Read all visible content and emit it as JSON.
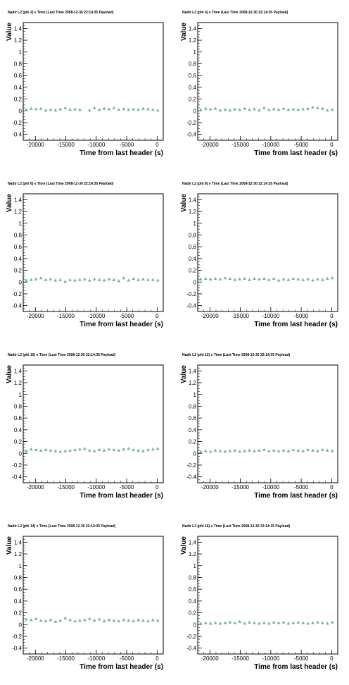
{
  "marker_color": "#6fb59c",
  "chart_data": [
    {
      "type": "scatter",
      "title": "Nadir L2 (phi 2) v Time (Last Time 2008-12-30 22:14:35 Payload)",
      "xlabel": "Time from last header (s)",
      "ylabel": "Value",
      "xlim": [
        -22000,
        1000
      ],
      "ylim": [
        -0.5,
        1.5
      ],
      "xticks": [
        -20000,
        -15000,
        -10000,
        -5000,
        0
      ],
      "xtick_labels": [
        "-20000",
        "-15000",
        "-10000",
        "-5000",
        "0"
      ],
      "yticks": [
        -0.4,
        -0.2,
        0,
        0.2,
        0.4,
        0.6,
        0.8,
        1,
        1.2,
        1.4
      ],
      "ytick_labels": [
        "-0.4",
        "-0.2",
        "0",
        "0.2",
        "0.4",
        "0.6",
        "0.8",
        "1",
        "1.2",
        "1.4"
      ],
      "grid": false,
      "x": [
        -21500,
        -20700,
        -19900,
        -19100,
        -18300,
        -17500,
        -16700,
        -15900,
        -15100,
        -14300,
        -13500,
        -12700,
        -11100,
        -10300,
        -9500,
        -8700,
        -7900,
        -7100,
        -6300,
        -5500,
        -4700,
        -3900,
        -3100,
        -2300,
        -1500,
        -700,
        100
      ],
      "y": [
        0.02,
        0.04,
        0.03,
        0.04,
        0.01,
        0.02,
        0.01,
        0.03,
        0.05,
        0.02,
        0.03,
        0.02,
        0.01,
        0.05,
        0.02,
        0.04,
        0.03,
        0.05,
        0.02,
        0.03,
        0.02,
        0.03,
        0.02,
        0.04,
        0.03,
        0.02,
        0.01
      ]
    },
    {
      "type": "scatter",
      "title": "Nadir L2 (phi 4) v Time (Last Time 2008-12-30 22:14:35 Payload)",
      "xlabel": "Time from last header (s)",
      "ylabel": "Value",
      "xlim": [
        -22000,
        1000
      ],
      "ylim": [
        -0.5,
        1.5
      ],
      "xticks": [
        -20000,
        -15000,
        -10000,
        -5000,
        0
      ],
      "xtick_labels": [
        "-20000",
        "-15000",
        "-10000",
        "-5000",
        "0"
      ],
      "yticks": [
        -0.4,
        -0.2,
        0,
        0.2,
        0.4,
        0.6,
        0.8,
        1,
        1.2,
        1.4
      ],
      "ytick_labels": [
        "-0.4",
        "-0.2",
        "0",
        "0.2",
        "0.4",
        "0.6",
        "0.8",
        "1",
        "1.2",
        "1.4"
      ],
      "grid": false,
      "x": [
        -21500,
        -20700,
        -19900,
        -19100,
        -18300,
        -17500,
        -16700,
        -15900,
        -15100,
        -14300,
        -13500,
        -12700,
        -11900,
        -11100,
        -10300,
        -9500,
        -8700,
        -7900,
        -7100,
        -6300,
        -5500,
        -4700,
        -3900,
        -3100,
        -2300,
        -1500,
        -700,
        100
      ],
      "y": [
        0.02,
        0.04,
        0.03,
        0.04,
        0.01,
        0.02,
        0.01,
        0.03,
        0.02,
        0.04,
        0.02,
        0.03,
        0.01,
        0.05,
        0.02,
        0.03,
        0.02,
        0.04,
        0.02,
        0.03,
        0.02,
        0.03,
        0.04,
        0.06,
        0.05,
        0.04,
        0.01,
        0.02
      ]
    },
    {
      "type": "scatter",
      "title": "Nadir L2 (phi 6) v Time (Last Time 2008-12-30 22:14:35 Payload)",
      "xlabel": "Time from last header (s)",
      "ylabel": "Value",
      "xlim": [
        -22000,
        1000
      ],
      "ylim": [
        -0.5,
        1.5
      ],
      "xticks": [
        -20000,
        -15000,
        -10000,
        -5000,
        0
      ],
      "xtick_labels": [
        "-20000",
        "-15000",
        "-10000",
        "-5000",
        "0"
      ],
      "yticks": [
        -0.4,
        -0.2,
        0,
        0.2,
        0.4,
        0.6,
        0.8,
        1,
        1.2,
        1.4
      ],
      "ytick_labels": [
        "-0.4",
        "-0.2",
        "0",
        "0.2",
        "0.4",
        "0.6",
        "0.8",
        "1",
        "1.2",
        "1.4"
      ],
      "grid": false,
      "x": [
        -21500,
        -20700,
        -19900,
        -19100,
        -18300,
        -17500,
        -16700,
        -15900,
        -15100,
        -14300,
        -13500,
        -12700,
        -11900,
        -11100,
        -10300,
        -9500,
        -8700,
        -7900,
        -7100,
        -6300,
        -5500,
        -4700,
        -3900,
        -3100,
        -2300,
        -1500,
        -700,
        100
      ],
      "y": [
        0.03,
        0.04,
        0.05,
        0.07,
        0.04,
        0.05,
        0.03,
        0.04,
        0.01,
        0.04,
        0.03,
        0.04,
        0.05,
        0.03,
        0.05,
        0.04,
        0.03,
        0.05,
        0.04,
        0.02,
        0.07,
        0.03,
        0.06,
        0.04,
        0.05,
        0.04,
        0.04,
        0.03
      ]
    },
    {
      "type": "scatter",
      "title": "Nadir L2 (phi 8) v Time (Last Time 2008-12-30 22:14:35 Payload)",
      "xlabel": "Time from last header (s)",
      "ylabel": "Value",
      "xlim": [
        -22000,
        1000
      ],
      "ylim": [
        -0.5,
        1.5
      ],
      "xticks": [
        -20000,
        -15000,
        -10000,
        -5000,
        0
      ],
      "xtick_labels": [
        "-20000",
        "-15000",
        "-10000",
        "-5000",
        "0"
      ],
      "yticks": [
        -0.4,
        -0.2,
        0,
        0.2,
        0.4,
        0.6,
        0.8,
        1,
        1.2,
        1.4
      ],
      "ytick_labels": [
        "-0.4",
        "-0.2",
        "0",
        "0.2",
        "0.4",
        "0.6",
        "0.8",
        "1",
        "1.2",
        "1.4"
      ],
      "grid": false,
      "x": [
        -21500,
        -20700,
        -19900,
        -19100,
        -18300,
        -17500,
        -16700,
        -15900,
        -15100,
        -14300,
        -13500,
        -12700,
        -11900,
        -11100,
        -10300,
        -9500,
        -8700,
        -7900,
        -7100,
        -6300,
        -5500,
        -4700,
        -3900,
        -3100,
        -2300,
        -1500,
        -700,
        100
      ],
      "y": [
        0.05,
        0.06,
        0.05,
        0.06,
        0.05,
        0.07,
        0.06,
        0.04,
        0.05,
        0.06,
        0.04,
        0.06,
        0.05,
        0.06,
        0.04,
        0.06,
        0.03,
        0.05,
        0.04,
        0.06,
        0.05,
        0.04,
        0.05,
        0.03,
        0.05,
        0.04,
        0.06,
        0.07
      ]
    },
    {
      "type": "scatter",
      "title": "Nadir L2 (phi 10) v Time (Last Time 2008-12-30 22:14:35 Payload)",
      "xlabel": "Time from last header (s)",
      "ylabel": "Value",
      "xlim": [
        -22000,
        1000
      ],
      "ylim": [
        -0.5,
        1.5
      ],
      "xticks": [
        -20000,
        -15000,
        -10000,
        -5000,
        0
      ],
      "xtick_labels": [
        "-20000",
        "-15000",
        "-10000",
        "-5000",
        "0"
      ],
      "yticks": [
        -0.4,
        -0.2,
        0,
        0.2,
        0.4,
        0.6,
        0.8,
        1,
        1.2,
        1.4
      ],
      "ytick_labels": [
        "-0.4",
        "-0.2",
        "0",
        "0.2",
        "0.4",
        "0.6",
        "0.8",
        "1",
        "1.2",
        "1.4"
      ],
      "grid": false,
      "x": [
        -21500,
        -20700,
        -19900,
        -19100,
        -18300,
        -17500,
        -16700,
        -15900,
        -15100,
        -14300,
        -13500,
        -12700,
        -11900,
        -11100,
        -10300,
        -9500,
        -8700,
        -7900,
        -7100,
        -6300,
        -5500,
        -4700,
        -3900,
        -3100,
        -2300,
        -1500,
        -700,
        100
      ],
      "y": [
        0.04,
        0.07,
        0.06,
        0.05,
        0.06,
        0.05,
        0.04,
        0.03,
        0.04,
        0.05,
        0.06,
        0.07,
        0.08,
        0.05,
        0.04,
        0.06,
        0.05,
        0.07,
        0.06,
        0.05,
        0.07,
        0.08,
        0.06,
        0.05,
        0.04,
        0.06,
        0.07,
        0.08
      ]
    },
    {
      "type": "scatter",
      "title": "Nadir L2 (phi 12) v Time (Last Time 2008-12-30 22:14:35 Payload)",
      "xlabel": "Time from last header (s)",
      "ylabel": "Value",
      "xlim": [
        -22000,
        1000
      ],
      "ylim": [
        -0.5,
        1.5
      ],
      "xticks": [
        -20000,
        -15000,
        -10000,
        -5000,
        0
      ],
      "xtick_labels": [
        "-20000",
        "-15000",
        "-10000",
        "-5000",
        "0"
      ],
      "yticks": [
        -0.4,
        -0.2,
        0,
        0.2,
        0.4,
        0.6,
        0.8,
        1,
        1.2,
        1.4
      ],
      "ytick_labels": [
        "-0.4",
        "-0.2",
        "0",
        "0.2",
        "0.4",
        "0.6",
        "0.8",
        "1",
        "1.2",
        "1.4"
      ],
      "grid": false,
      "x": [
        -21500,
        -20700,
        -19900,
        -19100,
        -18300,
        -17500,
        -16700,
        -15900,
        -15100,
        -14300,
        -13500,
        -12700,
        -11900,
        -11100,
        -10300,
        -9500,
        -8700,
        -7900,
        -7100,
        -6300,
        -5500,
        -4700,
        -3900,
        -3100,
        -2300,
        -1500,
        -700,
        100
      ],
      "y": [
        0.03,
        0.04,
        0.03,
        0.05,
        0.04,
        0.03,
        0.04,
        0.05,
        0.03,
        0.04,
        0.05,
        0.04,
        0.05,
        0.06,
        0.04,
        0.05,
        0.04,
        0.05,
        0.04,
        0.06,
        0.05,
        0.04,
        0.06,
        0.05,
        0.04,
        0.06,
        0.05,
        0.04
      ]
    },
    {
      "type": "scatter",
      "title": "Nadir L2 (phi 14) v Time (Last Time 2008-12-30 22:14:35 Payload)",
      "xlabel": "Time from last header (s)",
      "ylabel": "Value",
      "xlim": [
        -22000,
        1000
      ],
      "ylim": [
        -0.5,
        1.5
      ],
      "xticks": [
        -20000,
        -15000,
        -10000,
        -5000,
        0
      ],
      "xtick_labels": [
        "-20000",
        "-15000",
        "-10000",
        "-5000",
        "0"
      ],
      "yticks": [
        -0.4,
        -0.2,
        0,
        0.2,
        0.4,
        0.6,
        0.8,
        1,
        1.2,
        1.4
      ],
      "ytick_labels": [
        "-0.4",
        "-0.2",
        "0",
        "0.2",
        "0.4",
        "0.6",
        "0.8",
        "1",
        "1.2",
        "1.4"
      ],
      "grid": false,
      "x": [
        -21500,
        -20700,
        -19900,
        -19100,
        -18300,
        -17500,
        -16700,
        -15900,
        -15100,
        -14300,
        -13500,
        -12700,
        -11900,
        -11100,
        -10300,
        -9500,
        -8700,
        -7900,
        -7100,
        -6300,
        -5500,
        -4700,
        -3900,
        -3100,
        -2300,
        -1500,
        -700,
        100
      ],
      "y": [
        0.09,
        0.08,
        0.1,
        0.07,
        0.06,
        0.08,
        0.05,
        0.07,
        0.11,
        0.08,
        0.06,
        0.07,
        0.08,
        0.1,
        0.07,
        0.09,
        0.06,
        0.08,
        0.07,
        0.06,
        0.08,
        0.07,
        0.06,
        0.08,
        0.07,
        0.06,
        0.08,
        0.07
      ]
    },
    {
      "type": "scatter",
      "title": "Nadir L2 (phi 16) v Time (Last Time 2008-12-30 22:14:35 Payload)",
      "xlabel": "Time from last header (s)",
      "ylabel": "Value",
      "xlim": [
        -22000,
        1000
      ],
      "ylim": [
        -0.5,
        1.5
      ],
      "xticks": [
        -20000,
        -15000,
        -10000,
        -5000,
        0
      ],
      "xtick_labels": [
        "-20000",
        "-15000",
        "-10000",
        "-5000",
        "0"
      ],
      "yticks": [
        -0.4,
        -0.2,
        0,
        0.2,
        0.4,
        0.6,
        0.8,
        1,
        1.2,
        1.4
      ],
      "ytick_labels": [
        "-0.4",
        "-0.2",
        "0",
        "0.2",
        "0.4",
        "0.6",
        "0.8",
        "1",
        "1.2",
        "1.4"
      ],
      "grid": false,
      "x": [
        -21500,
        -20700,
        -19900,
        -19100,
        -18300,
        -17500,
        -16700,
        -15900,
        -15100,
        -14300,
        -13500,
        -12700,
        -11900,
        -11100,
        -10300,
        -9500,
        -8700,
        -7900,
        -7100,
        -6300,
        -5500,
        -4700,
        -3900,
        -3100,
        -2300,
        -1500,
        -700,
        100
      ],
      "y": [
        0.02,
        0.03,
        0.02,
        0.03,
        0.02,
        0.03,
        0.04,
        0.03,
        0.05,
        0.02,
        0.04,
        0.03,
        0.02,
        0.03,
        0.02,
        0.04,
        0.03,
        0.04,
        0.02,
        0.03,
        0.04,
        0.03,
        0.02,
        0.03,
        0.04,
        0.03,
        0.02,
        0.04
      ]
    }
  ]
}
